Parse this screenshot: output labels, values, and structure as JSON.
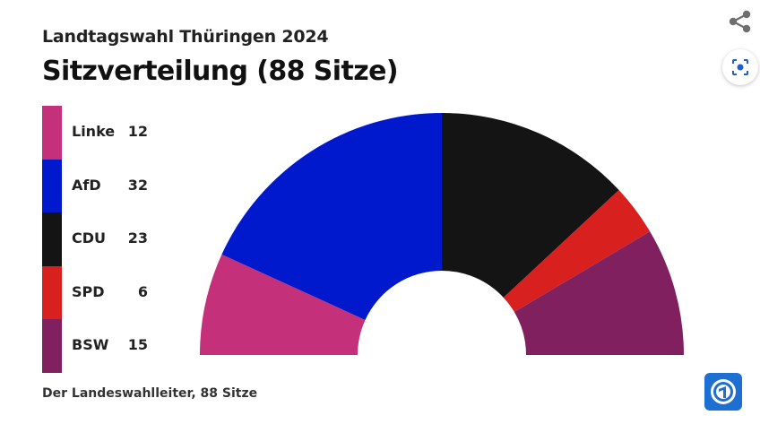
{
  "header": {
    "subtitle": "Landtagswahl Thüringen 2024",
    "title": "Sitzverteilung (88 Sitze)"
  },
  "source": "Der Landeswahlleiter, 88 Sitze",
  "icons": {
    "share": "share-icon",
    "lens": "lens-scan-icon",
    "logo": "broadcaster-logo-icon"
  },
  "chart_data": {
    "type": "pie",
    "variant": "half-donut",
    "total": 88,
    "categories": [
      "Linke",
      "AfD",
      "CDU",
      "SPD",
      "BSW"
    ],
    "values": [
      12,
      32,
      23,
      6,
      15
    ],
    "colors": [
      "#c4307a",
      "#0019cc",
      "#141414",
      "#d8201f",
      "#80205f"
    ],
    "legend": "left"
  }
}
